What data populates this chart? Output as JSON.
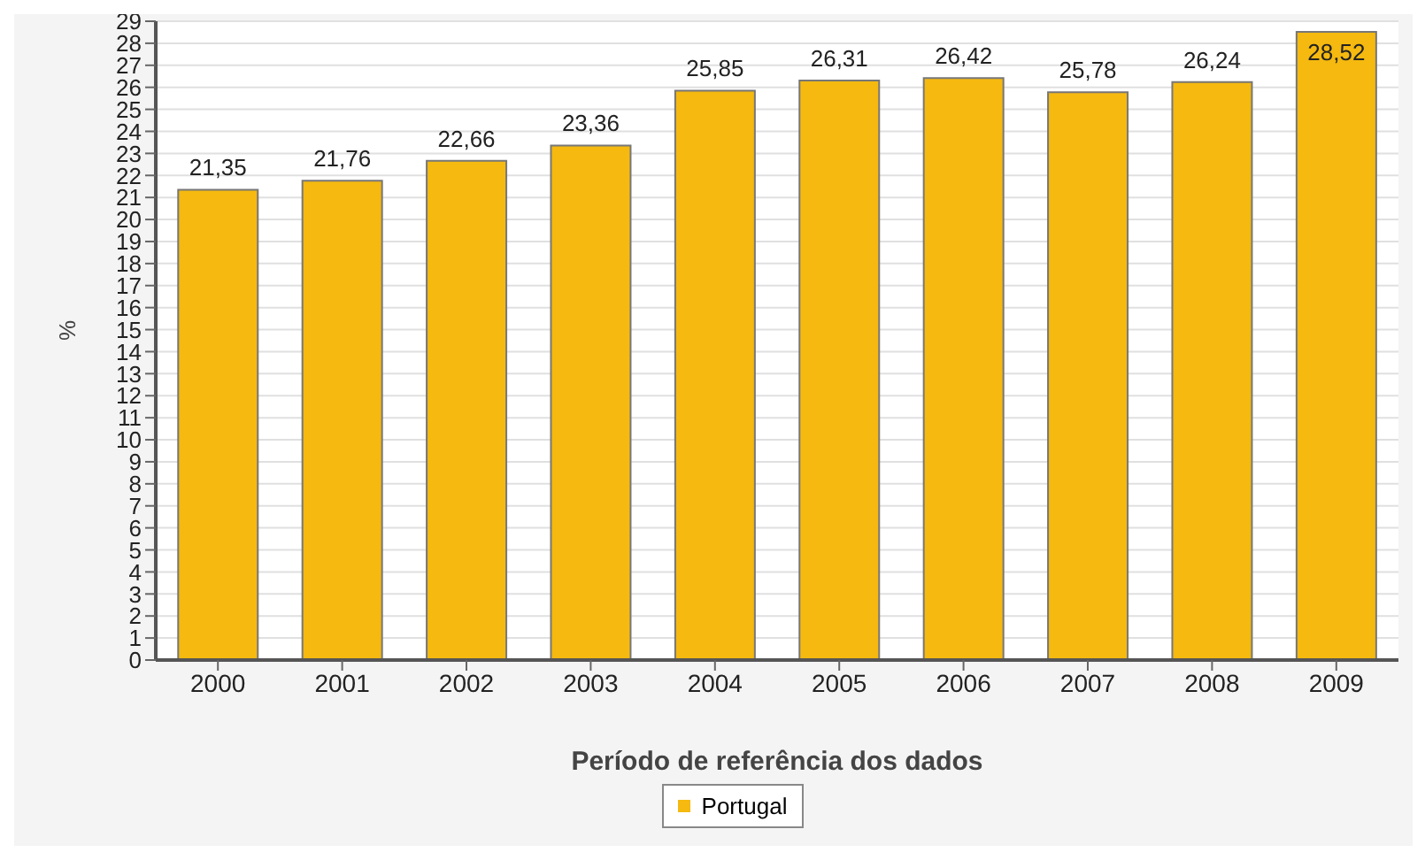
{
  "chart_data": {
    "type": "bar",
    "xlabel": "Período de referência dos dados",
    "ylabel": "%",
    "categories": [
      "2000",
      "2001",
      "2002",
      "2003",
      "2004",
      "2005",
      "2006",
      "2007",
      "2008",
      "2009"
    ],
    "series": [
      {
        "name": "Portugal",
        "color": "#f5b90f",
        "values": [
          21.35,
          21.76,
          22.66,
          23.36,
          25.85,
          26.31,
          26.42,
          25.78,
          26.24,
          28.52
        ],
        "value_labels": [
          "21,35",
          "21,76",
          "22,66",
          "23,36",
          "25,85",
          "26,31",
          "26,42",
          "25,78",
          "26,24",
          "28,52"
        ]
      }
    ],
    "ylim": [
      0,
      29
    ],
    "yticks": [
      0,
      1,
      2,
      3,
      4,
      5,
      6,
      7,
      8,
      9,
      10,
      11,
      12,
      13,
      14,
      15,
      16,
      17,
      18,
      19,
      20,
      21,
      22,
      23,
      24,
      25,
      26,
      27,
      28,
      29
    ],
    "grid": "y",
    "legend": "bottom"
  }
}
